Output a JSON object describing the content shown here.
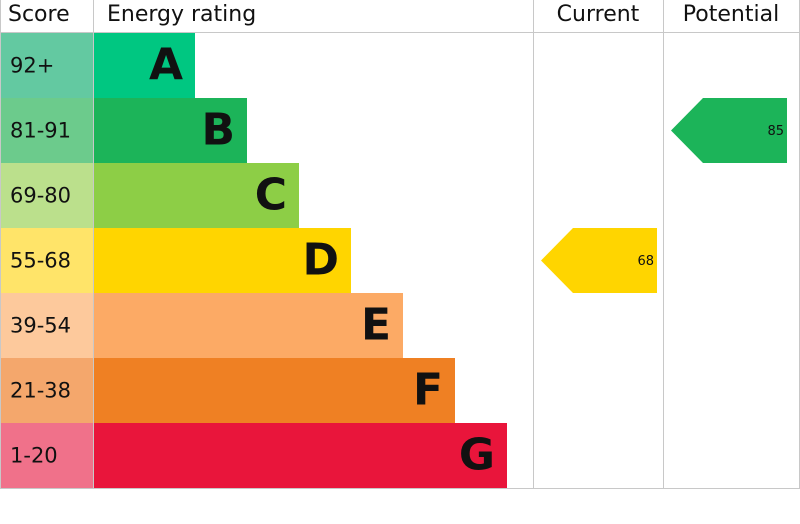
{
  "chart_data": {
    "type": "epc",
    "headers": [
      "Score",
      "Energy rating",
      "Current",
      "Potential"
    ],
    "bands": [
      {
        "label": "92+",
        "letter": "A",
        "color": "#00c781",
        "score_color": "#63c9a1"
      },
      {
        "label": "81-91",
        "letter": "B",
        "color": "#1cb459",
        "score_color": "#6ccb8c"
      },
      {
        "label": "69-80",
        "letter": "C",
        "color": "#8dce46",
        "score_color": "#bbe08c"
      },
      {
        "label": "55-68",
        "letter": "D",
        "color": "#ffd500",
        "score_color": "#ffe469"
      },
      {
        "label": "39-54",
        "letter": "E",
        "color": "#fcaa65",
        "score_color": "#fdc99c"
      },
      {
        "label": "21-38",
        "letter": "F",
        "color": "#ef8023",
        "score_color": "#f4a76c"
      },
      {
        "label": "1-20",
        "letter": "G",
        "color": "#e9153b",
        "score_color": "#f0718a"
      }
    ],
    "current": 68,
    "potential": 85
  }
}
